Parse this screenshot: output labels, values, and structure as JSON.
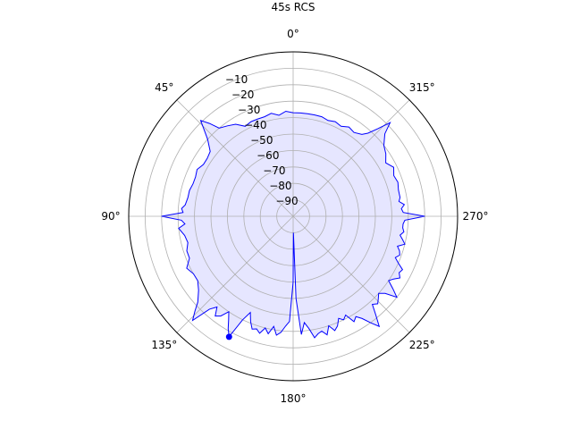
{
  "chart_data": {
    "type": "polar-line",
    "title": "45s RCS",
    "theta_direction": "clockwise",
    "theta_zero": "top",
    "r_range": [
      -100,
      0
    ],
    "radial_ticks": [
      -90,
      -80,
      -70,
      -60,
      -50,
      -40,
      -30,
      -20,
      -10
    ],
    "radial_tick_labels": [
      "−90",
      "−80",
      "−70",
      "−60",
      "−50",
      "−40",
      "−30",
      "−20",
      "−10"
    ],
    "angle_ticks": [
      0,
      45,
      90,
      135,
      180,
      225,
      270,
      315
    ],
    "angle_tick_labels": [
      "0°",
      "45°",
      "90°",
      "135°",
      "180°",
      "225°",
      "270°",
      "315°"
    ],
    "grid": true,
    "line_color": "#0000ff",
    "fill_color": "#e6e6ff",
    "marker": {
      "angle_deg": 152,
      "r_db": -17
    },
    "series": [
      {
        "angle_deg": [
          0,
          4,
          8,
          12,
          16,
          20,
          24,
          28,
          32,
          36,
          40,
          42,
          44,
          46,
          48,
          52,
          56,
          60,
          64,
          68,
          72,
          76,
          80,
          84,
          86,
          88,
          90,
          92,
          94,
          96,
          100,
          104,
          108,
          112,
          116,
          120,
          124,
          128,
          132,
          134,
          136,
          138,
          140,
          142,
          144,
          146,
          148,
          150,
          152,
          154,
          156,
          158,
          160,
          162,
          164,
          166,
          168,
          170,
          172,
          174,
          176,
          178,
          180,
          181,
          182,
          184,
          186,
          188,
          190,
          192,
          194,
          196,
          198,
          200,
          202,
          204,
          206,
          208,
          210,
          212,
          214,
          216,
          218,
          220,
          222,
          224,
          226,
          228,
          230,
          232,
          234,
          236,
          238,
          240,
          242,
          244,
          246,
          248,
          250,
          252,
          254,
          256,
          258,
          260,
          262,
          264,
          266,
          268,
          270,
          272,
          274,
          276,
          278,
          280,
          284,
          288,
          292,
          296,
          300,
          304,
          308,
          312,
          314,
          316,
          318,
          320,
          324,
          328,
          332,
          336,
          340,
          344,
          348,
          352,
          356,
          360
        ],
        "r_db": [
          -37,
          -36,
          -38,
          -36,
          -37,
          -37,
          -37,
          -38,
          -34,
          -32,
          -30,
          -24,
          -19,
          -25,
          -30,
          -36,
          -37,
          -37,
          -35,
          -36,
          -36,
          -35,
          -35,
          -34,
          -32,
          -33,
          -20,
          -32,
          -34,
          -30,
          -33,
          -34,
          -32,
          -32,
          -28,
          -30,
          -30,
          -27,
          -22,
          -17,
          -12,
          -24,
          -28,
          -23,
          -25,
          -30,
          -26,
          -21,
          -17,
          -30,
          -36,
          -31,
          -27,
          -28,
          -26,
          -30,
          -27,
          -32,
          -27,
          -29,
          -33,
          -36,
          -60,
          -90,
          -50,
          -28,
          -35,
          -31,
          -25,
          -27,
          -28,
          -25,
          -30,
          -26,
          -28,
          -32,
          -30,
          -32,
          -26,
          -28,
          -25,
          -20,
          -15,
          -22,
          -28,
          -26,
          -28,
          -30,
          -27,
          -20,
          -25,
          -30,
          -28,
          -25,
          -27,
          -26,
          -30,
          -33,
          -31,
          -32,
          -34,
          -30,
          -32,
          -34,
          -32,
          -33,
          -33,
          -32,
          -20,
          -33,
          -34,
          -32,
          -35,
          -34,
          -34,
          -33,
          -34,
          -32,
          -35,
          -32,
          -30,
          -25,
          -18,
          -26,
          -32,
          -35,
          -37,
          -36,
          -38,
          -37,
          -38,
          -37,
          -37,
          -37,
          -37,
          -37
        ]
      }
    ]
  }
}
